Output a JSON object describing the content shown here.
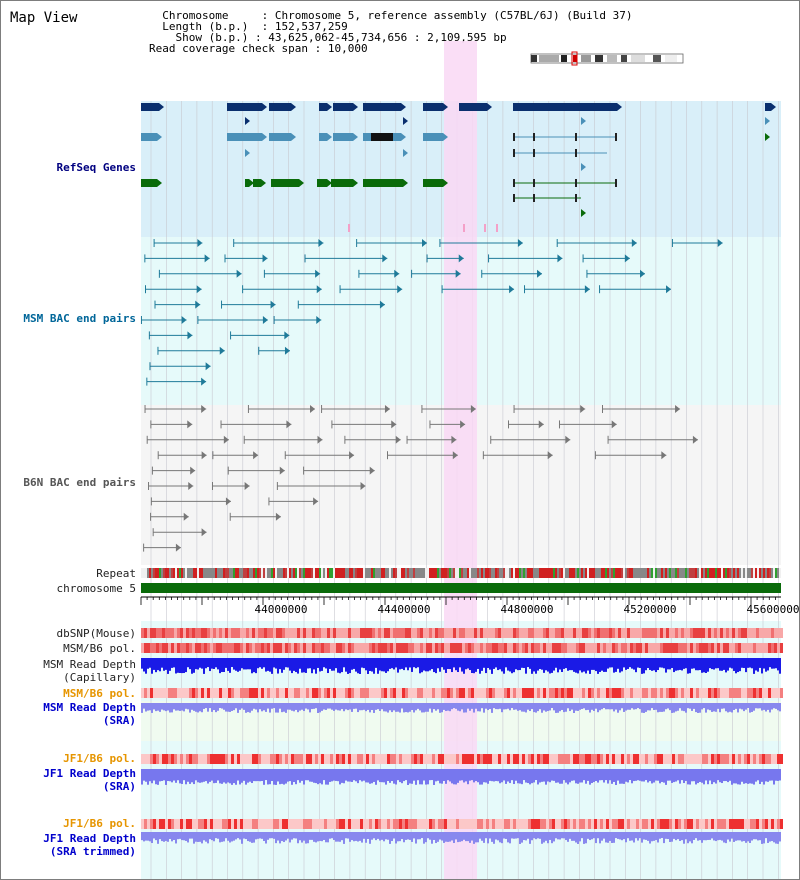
{
  "title": "Map View",
  "info": {
    "chrom_key": "Chromosome",
    "chrom_val": "Chromosome 5, reference assembly (C57BL/6J) (Build 37)",
    "len_key": "Length (b.p.)",
    "len_val": "152,537,259",
    "show_key": "Show (b.p.)",
    "show_val": "43,625,062-45,734,656 : 2,109,595 bp",
    "read_key": "Read coverage check span",
    "read_val": "10,000"
  },
  "track_labels": {
    "refseq": "RefSeq Genes",
    "msm_bac": "MSM BAC end pairs",
    "b6n_bac": "B6N BAC end pairs",
    "repeat": "Repeat",
    "chromosome": "chromosome 5",
    "dbsnp": "dbSNP(Mouse)",
    "msm_b6_pol": "MSM/B6 pol.",
    "msm_read_depth": "MSM Read Depth",
    "capillary": "(Capillary)",
    "msm_b6_pol2": "MSM/B6 pol.",
    "msm_read_depth_sra": "MSM Read Depth",
    "sra": "(SRA)",
    "jf1_b6_pol": "JF1/B6 pol.",
    "jf1_read_depth": "JF1 Read Depth",
    "sra2": "(SRA)",
    "jf1_b6_pol2": "JF1/B6 pol.",
    "jf1_read_depth_trim": "JF1 Read Depth",
    "sra_trimmed": "(SRA trimmed)"
  },
  "axis": {
    "ticks": [
      "44000000",
      "44400000",
      "44800000",
      "45200000",
      "45600000"
    ]
  },
  "colors": {
    "refseq_bg": "#d9eff9",
    "bac_bg": "#e6fafa",
    "b6n_bg": "#f5f5f5",
    "highlight": "#f9d8f5",
    "chromosome": "#0a6b0a",
    "msm_label": "#006699",
    "b6n_label": "#555555",
    "refseq_label": "#000080",
    "pol_label_orange": "#e69500",
    "depth_label_blue": "#0000cc"
  }
}
